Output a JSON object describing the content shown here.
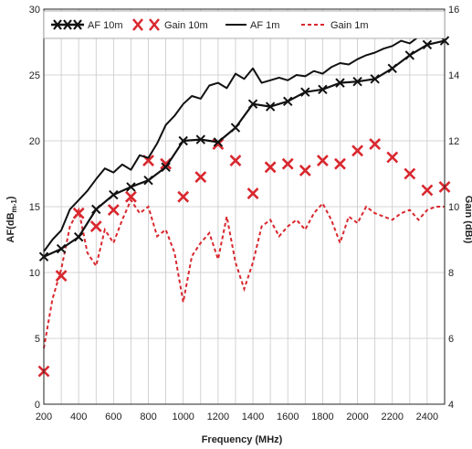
{
  "chart_data": {
    "type": "line",
    "xlabel": "Frequency (MHz)",
    "ylabel_left": "AF(dB",
    "ylabel_left_sub": "m-1",
    "ylabel_left_end": ")",
    "ylabel_right": "Gain (dBi)",
    "xlim": [
      200,
      2500
    ],
    "ylim_left": [
      0,
      30
    ],
    "ylim_right": [
      4,
      16
    ],
    "xticks": [
      "200",
      "400",
      "600",
      "800",
      "1000",
      "1200",
      "1400",
      "1600",
      "1800",
      "2000",
      "2200",
      "2400"
    ],
    "yticks_left": [
      "0",
      "5",
      "10",
      "15",
      "20",
      "25",
      "30"
    ],
    "yticks_right": [
      "4",
      "6",
      "8",
      "10",
      "12",
      "14",
      "16"
    ],
    "grid": true,
    "legend_position": "top",
    "series": [
      {
        "name": "AF 10m",
        "axis": "left",
        "color": "#111111",
        "style": "solid-x",
        "x": [
          200,
          300,
          400,
          500,
          600,
          700,
          800,
          900,
          1000,
          1100,
          1200,
          1300,
          1400,
          1500,
          1600,
          1700,
          1800,
          1900,
          2000,
          2100,
          2200,
          2300,
          2400,
          2500
        ],
        "y": [
          11.2,
          11.8,
          12.7,
          14.8,
          15.9,
          16.5,
          17.0,
          18.0,
          20.0,
          20.1,
          19.9,
          21.0,
          22.8,
          22.6,
          23.0,
          23.7,
          23.9,
          24.4,
          24.5,
          24.7,
          25.5,
          26.5,
          27.3,
          27.6
        ]
      },
      {
        "name": "Gain 10m",
        "axis": "right",
        "color": "#d9272e",
        "style": "x-markers",
        "x": [
          200,
          300,
          400,
          500,
          600,
          700,
          800,
          900,
          1000,
          1100,
          1200,
          1300,
          1400,
          1500,
          1600,
          1700,
          1800,
          1900,
          2000,
          2100,
          2200,
          2300,
          2400,
          2500
        ],
        "y": [
          5.0,
          7.9,
          9.8,
          9.4,
          9.9,
          10.3,
          11.4,
          11.3,
          10.3,
          10.9,
          11.9,
          11.4,
          10.4,
          11.2,
          11.3,
          11.1,
          11.4,
          11.3,
          11.7,
          11.9,
          11.5,
          11.0,
          10.5,
          10.6
        ]
      },
      {
        "name": "AF 1m",
        "axis": "left",
        "color": "#111111",
        "style": "solid",
        "x": [
          200,
          250,
          300,
          350,
          400,
          450,
          500,
          550,
          600,
          650,
          700,
          750,
          800,
          850,
          900,
          950,
          1000,
          1050,
          1100,
          1150,
          1200,
          1250,
          1300,
          1350,
          1400,
          1450,
          1500,
          1550,
          1600,
          1650,
          1700,
          1750,
          1800,
          1850,
          1900,
          1950,
          2000,
          2050,
          2100,
          2150,
          2200,
          2250,
          2300,
          2350,
          2400,
          2450,
          2500
        ],
        "y": [
          11.6,
          12.5,
          13.2,
          14.8,
          15.5,
          16.2,
          17.1,
          17.9,
          17.6,
          18.2,
          17.8,
          18.9,
          18.7,
          19.8,
          21.2,
          21.9,
          22.8,
          23.4,
          23.2,
          24.2,
          24.4,
          24.0,
          25.1,
          24.7,
          25.5,
          24.4,
          24.6,
          24.8,
          24.6,
          25.0,
          24.9,
          25.3,
          25.1,
          25.6,
          25.9,
          25.8,
          26.2,
          26.5,
          26.7,
          27.0,
          27.2,
          27.6,
          27.4,
          27.9,
          28.2,
          28.0,
          27.9
        ]
      },
      {
        "name": "Gain 1m",
        "axis": "right",
        "color": "#d9272e",
        "style": "dashed",
        "x": [
          200,
          250,
          300,
          350,
          400,
          450,
          500,
          550,
          600,
          650,
          700,
          750,
          800,
          850,
          900,
          950,
          1000,
          1050,
          1100,
          1150,
          1200,
          1250,
          1300,
          1350,
          1400,
          1450,
          1500,
          1550,
          1600,
          1650,
          1700,
          1750,
          1800,
          1850,
          1900,
          1950,
          2000,
          2050,
          2100,
          2150,
          2200,
          2250,
          2300,
          2350,
          2400,
          2450,
          2500
        ],
        "y": [
          5.7,
          7.2,
          8.1,
          9.4,
          9.9,
          8.6,
          8.2,
          9.3,
          8.9,
          9.6,
          10.2,
          9.8,
          10.0,
          9.1,
          9.3,
          8.6,
          7.1,
          8.5,
          8.9,
          9.2,
          8.4,
          9.7,
          8.3,
          7.5,
          8.3,
          9.4,
          9.6,
          9.1,
          9.4,
          9.6,
          9.3,
          9.8,
          10.1,
          9.6,
          8.9,
          9.7,
          9.5,
          10.0,
          9.8,
          9.7,
          9.6,
          9.8,
          9.9,
          9.6,
          9.9,
          10.0,
          10.0
        ]
      }
    ]
  }
}
